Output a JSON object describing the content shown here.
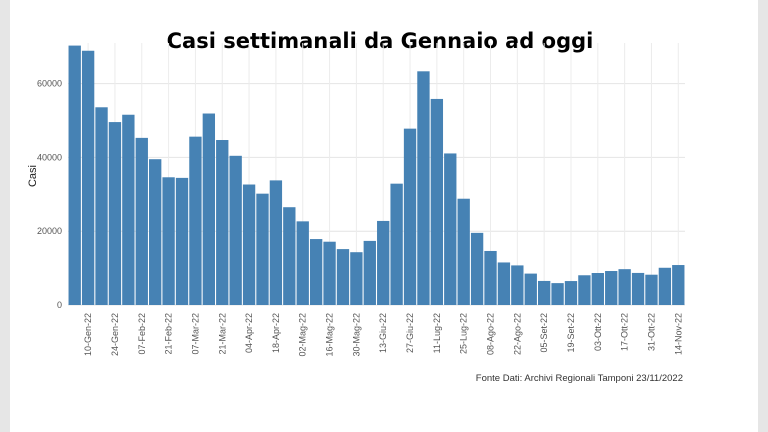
{
  "chart_data": {
    "type": "bar",
    "title": "Casi settimanali da Gennaio ad oggi",
    "y_label": "Casi",
    "source": "Fonte Dati: Archivi Regionali Tamponi 23/11/2022",
    "categories": [
      null,
      "10-Gen-22",
      null,
      "24-Gen-22",
      null,
      "07-Feb-22",
      null,
      "21-Feb-22",
      null,
      "07-Mar-22",
      null,
      "21-Mar-22",
      null,
      "04-Apr-22",
      null,
      "18-Apr-22",
      null,
      "02-Mag-22",
      null,
      "16-Mag-22",
      null,
      "30-Mag-22",
      null,
      "13-Giu-22",
      null,
      "27-Giu-22",
      null,
      "11-Lug-22",
      null,
      "25-Lug-22",
      null,
      "08-Ago-22",
      null,
      "22-Ago-22",
      null,
      "05-Set-22",
      null,
      "19-Set-22",
      null,
      "03-Ott-22",
      null,
      "17-Ott-22",
      null,
      "31-Ott-22",
      null,
      "14-Nov-22"
    ],
    "values": [
      70300,
      68900,
      53580,
      49570,
      51560,
      45290,
      39510,
      34610,
      34450,
      45620,
      51890,
      44710,
      40430,
      32650,
      30170,
      33770,
      26500,
      22670,
      17870,
      17150,
      15150,
      14310,
      17370,
      22780,
      32880,
      47790,
      63330,
      55840,
      41070,
      28800,
      19550,
      14640,
      11530,
      10730,
      8510,
      6520,
      5930,
      6490,
      8060,
      8670,
      9210,
      9710,
      8690,
      8210,
      10090,
      10830
    ],
    "color": "#4682b4",
    "ylim": [
      0,
      71000
    ],
    "yticks": [
      0,
      20000,
      40000,
      60000
    ],
    "grid": true
  }
}
